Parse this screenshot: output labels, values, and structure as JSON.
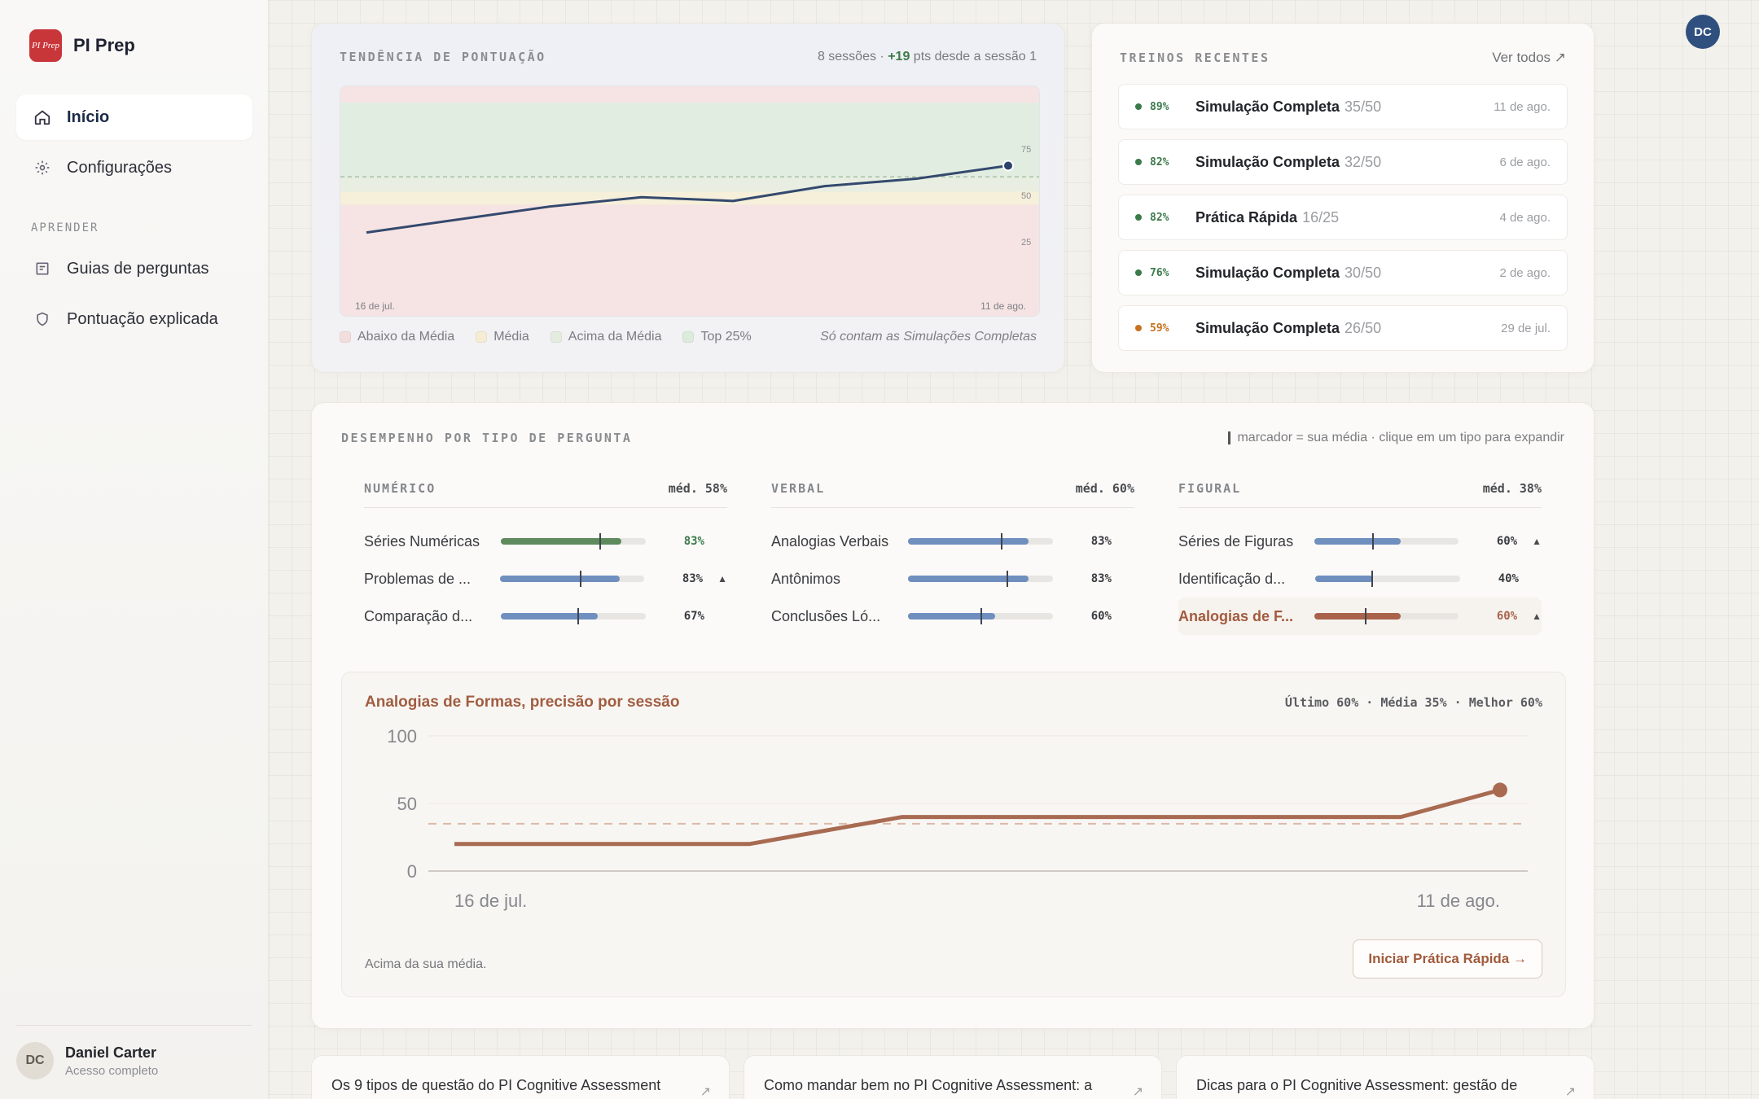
{
  "brand": {
    "logo_text": "PI Prep",
    "name": "PI Prep"
  },
  "nav": {
    "items": [
      {
        "label": "Início",
        "icon": "home-icon",
        "active": true
      },
      {
        "label": "Configurações",
        "icon": "gear-icon",
        "active": false
      }
    ],
    "section_label": "APRENDER",
    "learn_items": [
      {
        "label": "Guias de perguntas",
        "icon": "guide-icon"
      },
      {
        "label": "Pontuação explicada",
        "icon": "shield-icon"
      }
    ]
  },
  "user": {
    "initials": "DC",
    "name": "Daniel Carter",
    "plan": "Acesso completo"
  },
  "trend": {
    "title": "TENDÊNCIA DE PONTUAÇÃO",
    "meta_prefix": "8 sessões · ",
    "meta_delta": "+19",
    "meta_suffix": " pts desde a sessão 1",
    "x_start": "16 de jul.",
    "x_end": "11 de ago.",
    "legend": [
      {
        "label": "Abaixo da Média",
        "color": "#f3dede"
      },
      {
        "label": "Média",
        "color": "#f4edd3"
      },
      {
        "label": "Acima da Média",
        "color": "#e3ecdf"
      },
      {
        "label": "Top 25%",
        "color": "#dcebdc"
      }
    ],
    "note": "Só contam as Simulações Completas"
  },
  "recent": {
    "title": "TREINOS RECENTES",
    "see_all": "Ver todos ↗",
    "items": [
      {
        "pct": "89%",
        "name": "Simulação Completa",
        "score": "35/50",
        "date": "11 de ago.",
        "color": "#3b7a4a"
      },
      {
        "pct": "82%",
        "name": "Simulação Completa",
        "score": "32/50",
        "date": "6 de ago.",
        "color": "#3b7a4a"
      },
      {
        "pct": "82%",
        "name": "Prática Rápida",
        "score": "16/25",
        "date": "4 de ago.",
        "color": "#3b7a4a"
      },
      {
        "pct": "76%",
        "name": "Simulação Completa",
        "score": "30/50",
        "date": "2 de ago.",
        "color": "#3b7a4a"
      },
      {
        "pct": "59%",
        "name": "Simulação Completa",
        "score": "26/50",
        "date": "29 de jul.",
        "color": "#c8711e"
      }
    ]
  },
  "performance": {
    "title": "DESEMPENHO POR TIPO DE PERGUNTA",
    "note": "marcador = sua média · clique em um tipo para expandir",
    "columns": [
      {
        "title": "NUMÉRICO",
        "avg": "méd. 58%",
        "rows": [
          {
            "name": "Séries Numéricas",
            "pct": "83%",
            "value": 83,
            "marker": 68,
            "color": "#5f8a5e",
            "pct_color": "#3b7a4a",
            "trend": ""
          },
          {
            "name": "Problemas de ...",
            "pct": "83%",
            "value": 83,
            "marker": 55,
            "color": "#6f8fbf",
            "pct_color": "#3a3c42",
            "trend": "▲"
          },
          {
            "name": "Comparação d...",
            "pct": "67%",
            "value": 67,
            "marker": 53,
            "color": "#6f8fbf",
            "pct_color": "#3a3c42",
            "trend": ""
          }
        ]
      },
      {
        "title": "VERBAL",
        "avg": "méd. 60%",
        "rows": [
          {
            "name": "Analogias Verbais",
            "pct": "83%",
            "value": 83,
            "marker": 64,
            "color": "#6f8fbf",
            "pct_color": "#3a3c42",
            "trend": ""
          },
          {
            "name": "Antônimos",
            "pct": "83%",
            "value": 83,
            "marker": 68,
            "color": "#6f8fbf",
            "pct_color": "#3a3c42",
            "trend": ""
          },
          {
            "name": "Conclusões Ló...",
            "pct": "60%",
            "value": 60,
            "marker": 50,
            "color": "#6f8fbf",
            "pct_color": "#3a3c42",
            "trend": ""
          }
        ]
      },
      {
        "title": "FIGURAL",
        "avg": "méd. 38%",
        "rows": [
          {
            "name": "Séries de Figuras",
            "pct": "60%",
            "value": 60,
            "marker": 40,
            "color": "#6f8fbf",
            "pct_color": "#3a3c42",
            "trend": "▲"
          },
          {
            "name": "Identificação d...",
            "pct": "40%",
            "value": 40,
            "marker": 39,
            "color": "#6f8fbf",
            "pct_color": "#3a3c42",
            "trend": ""
          },
          {
            "name": "Analogias de F...",
            "pct": "60%",
            "value": 60,
            "marker": 35,
            "color": "#a8634a",
            "pct_color": "#a8634a",
            "trend": "▲",
            "highlight": true
          }
        ]
      }
    ]
  },
  "detail": {
    "title": "Analogias de Formas, precisão por sessão",
    "stats": "Último 60% · Média 35% · Melhor 60%",
    "foot": "Acima da sua média.",
    "button": "Iniciar Prática Rápida →"
  },
  "chart_data": [
    {
      "type": "line",
      "title": "TENDÊNCIA DE PONTUAÇÃO",
      "x": [
        "16 de jul.",
        "",
        "",
        "",
        "",
        "",
        "",
        "11 de ago."
      ],
      "series": [
        {
          "values": [
            30,
            37,
            44,
            49,
            47,
            55,
            59,
            66
          ]
        }
      ],
      "ylim": [
        0,
        100
      ],
      "y_ticks": [
        "25",
        "50",
        "75"
      ],
      "bands": [
        "Abaixo da Média",
        "Média",
        "Acima da Média",
        "Top 25%"
      ],
      "reference_line": 60
    },
    {
      "type": "line",
      "title": "Analogias de Formas, precisão por sessão",
      "x": [
        "16 de jul.",
        "",
        "",
        "",
        "",
        "",
        "",
        "11 de ago."
      ],
      "series": [
        {
          "values": [
            20,
            20,
            20,
            40,
            40,
            40,
            40,
            60
          ]
        }
      ],
      "ylim": [
        0,
        100
      ],
      "y_ticks": [
        "0",
        "50",
        "100"
      ],
      "average_line": 35
    }
  ],
  "articles": [
    {
      "title": "Os 9 tipos de questão do PI Cognitive Assessment"
    },
    {
      "title": "Como mandar bem no PI Cognitive Assessment: a"
    },
    {
      "title": "Dicas para o PI Cognitive Assessment: gestão de"
    }
  ]
}
